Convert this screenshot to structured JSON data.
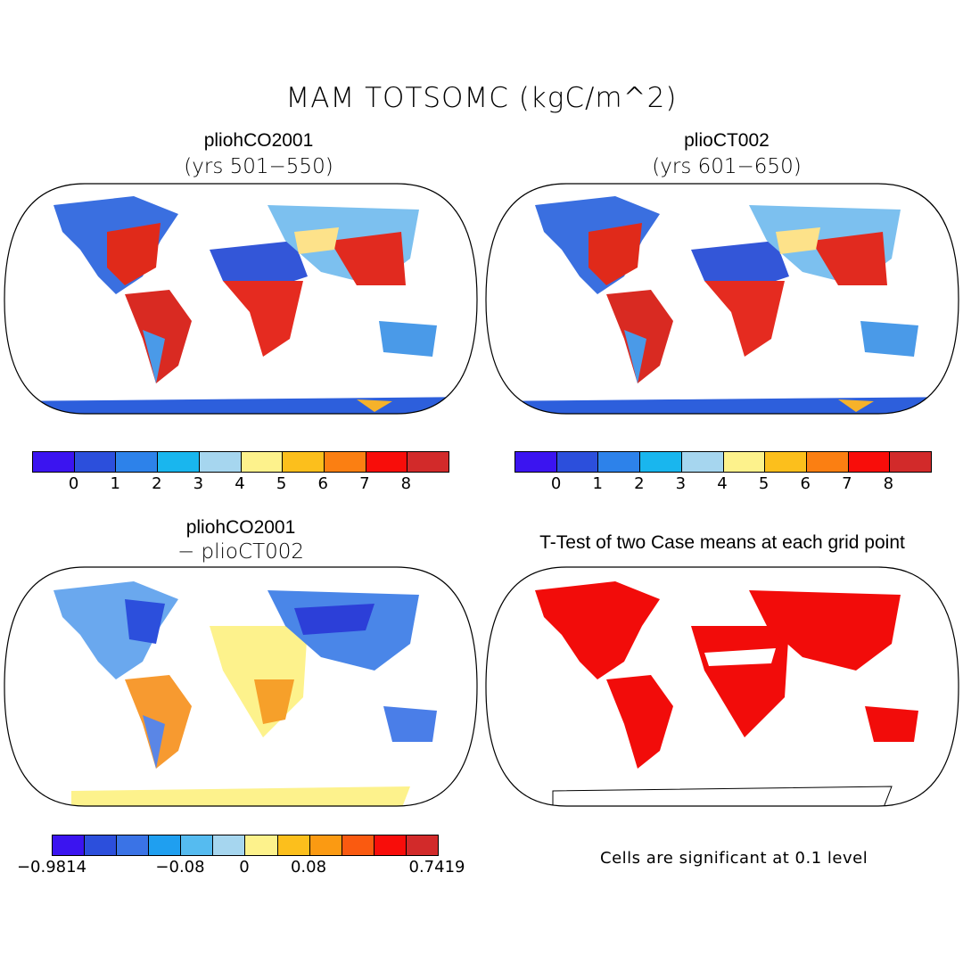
{
  "title": "MAM TOTSOMC (kgC/m^2)",
  "panels": {
    "p1": {
      "title": "pliohCO2001",
      "sub": "(yrs 501−550)"
    },
    "p2": {
      "title": "plioCT002",
      "sub": "(yrs 601−650)"
    },
    "p3": {
      "title": "pliohCO2001",
      "sub": "− plioCT002"
    },
    "p4": {
      "title": "T-Test of two Case means at each grid point"
    }
  },
  "colorbar_main": {
    "colors": [
      "#3b14f0",
      "#2c4fdc",
      "#2d82ea",
      "#19b6ee",
      "#a6d6ef",
      "#fdf28c",
      "#fcbf1c",
      "#fb7f12",
      "#f80d0a",
      "#d22a2a"
    ],
    "ticks": [
      "0",
      "1",
      "2",
      "3",
      "4",
      "5",
      "6",
      "7",
      "8"
    ]
  },
  "colorbar_diff": {
    "colors": [
      "#3b14f0",
      "#2c4fdc",
      "#3a73e6",
      "#1f9ff0",
      "#55bbf0",
      "#a6d6ef",
      "#fdf28c",
      "#fcbf1c",
      "#fb9a12",
      "#fa5a10",
      "#f80d0a",
      "#d22a2a"
    ],
    "ticks": [
      "−0.9814",
      "−0.08",
      "0",
      "0.08",
      "0.7419"
    ]
  },
  "note": "Cells are significant at 0.1 level"
}
